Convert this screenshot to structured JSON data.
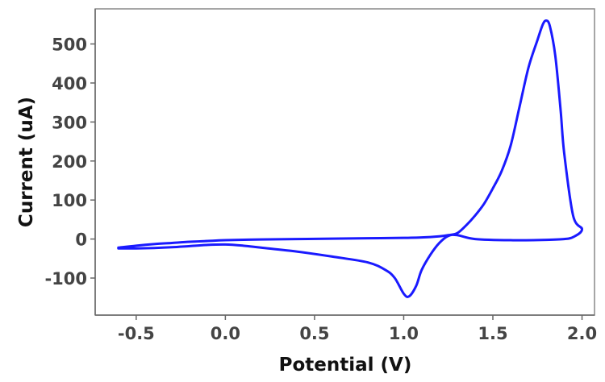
{
  "chart_data": {
    "type": "line",
    "title": "",
    "xlabel": "Potential (V)",
    "ylabel": "Current (uA)",
    "xlim": [
      -0.73,
      2.07
    ],
    "ylim": [
      -195,
      590
    ],
    "x_ticks": [
      -0.5,
      0.0,
      0.5,
      1.0,
      1.5,
      2.0
    ],
    "x_tick_labels": [
      "-0.5",
      "0.0",
      "0.5",
      "1.0",
      "1.5",
      "2.0"
    ],
    "y_ticks": [
      -100,
      0,
      100,
      200,
      300,
      400,
      500
    ],
    "y_tick_labels": [
      "-100",
      "0",
      "100",
      "200",
      "300",
      "400",
      "500"
    ],
    "grid": false,
    "line_color": "#1a1aff",
    "series": [
      {
        "x": [
          -0.6,
          -0.5,
          -0.4,
          -0.3,
          -0.2,
          -0.1,
          0.0,
          0.2,
          0.4,
          0.6,
          0.8,
          1.0,
          1.1,
          1.2,
          1.25,
          1.3,
          1.35,
          1.4,
          1.45,
          1.5,
          1.55,
          1.6,
          1.65,
          1.7,
          1.75,
          1.78,
          1.8,
          1.82,
          1.85,
          1.88,
          1.9,
          1.95,
          2.0,
          1.95,
          1.9,
          1.8,
          1.6,
          1.4,
          1.3,
          1.25,
          1.2,
          1.15,
          1.1,
          1.07,
          1.03,
          1.0,
          0.95,
          0.9,
          0.8,
          0.6,
          0.4,
          0.2,
          0.1,
          0.0,
          -0.1,
          -0.2,
          -0.3,
          -0.4,
          -0.5,
          -0.6
        ],
        "y": [
          -22,
          -17,
          -13,
          -10,
          -7,
          -5,
          -3,
          -1,
          0,
          1,
          2,
          3,
          4,
          7,
          10,
          15,
          35,
          60,
          90,
          130,
          175,
          240,
          340,
          440,
          510,
          550,
          560,
          545,
          470,
          330,
          220,
          60,
          25,
          5,
          0,
          -2,
          -3,
          0,
          10,
          8,
          -10,
          -40,
          -80,
          -120,
          -147,
          -140,
          -100,
          -80,
          -60,
          -45,
          -32,
          -22,
          -17,
          -14,
          -15,
          -18,
          -21,
          -23,
          -24,
          -24
        ]
      }
    ]
  }
}
